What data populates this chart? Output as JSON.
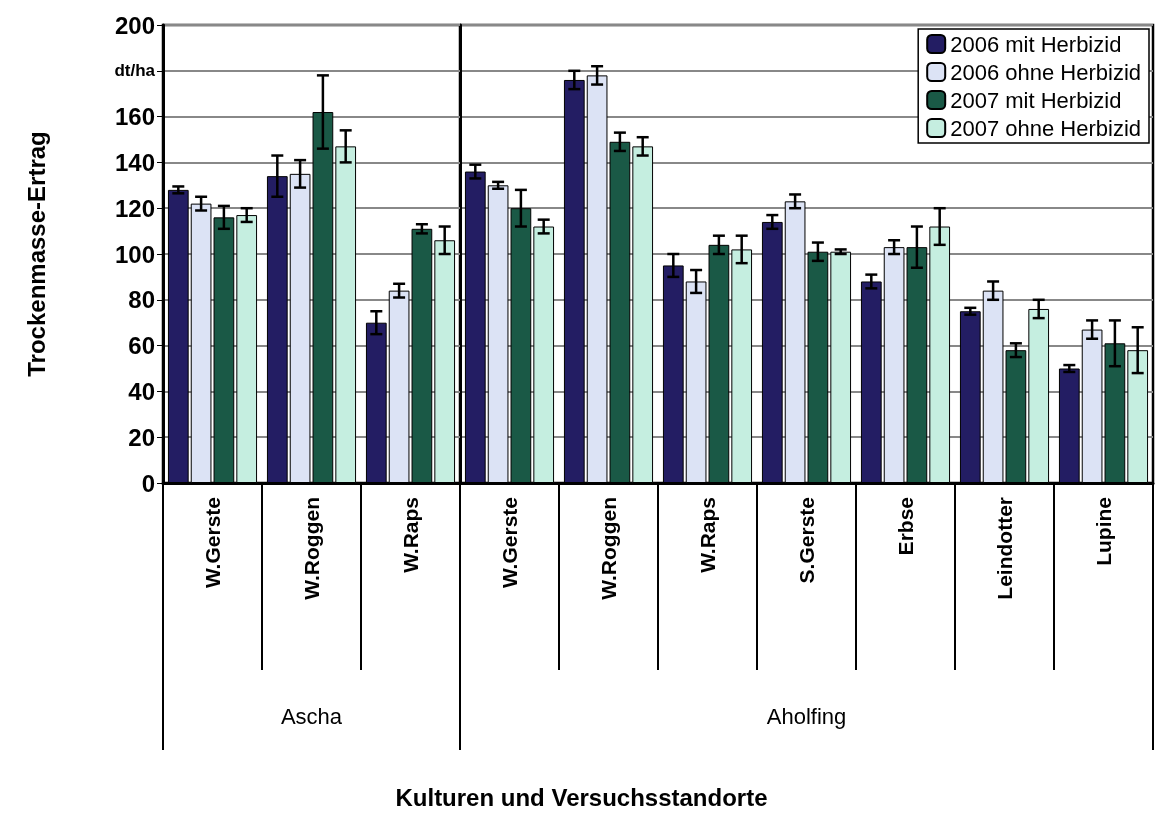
{
  "chart_data": [
    {
      "type": "bar",
      "ylabel": "Trockenmasse-Ertrag",
      "categories": [
        "W.Gerste",
        "W.Roggen",
        "W.Raps"
      ],
      "annotations": [
        "Ascha"
      ],
      "series": [
        {
          "color": "#231d63",
          "values": [
            128,
            134,
            70
          ],
          "errors": [
            1.5,
            9,
            5
          ]
        },
        {
          "color": "#dce3f5",
          "values": [
            122,
            135,
            84
          ],
          "errors": [
            3,
            6,
            3
          ]
        },
        {
          "color": "#1a5946",
          "values": [
            116,
            162,
            111
          ],
          "errors": [
            5,
            16,
            2
          ]
        },
        {
          "color": "#c5eee0",
          "values": [
            117,
            147,
            106
          ],
          "errors": [
            3,
            7,
            6
          ]
        }
      ],
      "ylim": [
        0,
        200
      ],
      "yticks": [
        0,
        20,
        40,
        60,
        80,
        100,
        120,
        140,
        160,
        {
          "value": 180,
          "label": "dt/ha"
        },
        200
      ],
      "grid": "y"
    },
    {
      "type": "bar",
      "xlabel": "Kulturen und Versuchsstandorte",
      "categories": [
        "W.Gerste",
        "W.Roggen",
        "W.Raps",
        "S.Gerste",
        "Erbse",
        "Leindotter",
        "Lupine"
      ],
      "annotations": [
        "Aholfing"
      ],
      "series": [
        {
          "name": "2006 mit Herbizid",
          "color": "#231d63",
          "values": [
            136,
            176,
            95,
            114,
            88,
            75,
            50
          ],
          "errors": [
            3,
            4,
            5,
            3,
            3,
            1.5,
            1.5
          ]
        },
        {
          "name": "2006 ohne Herbizid",
          "color": "#dce3f5",
          "values": [
            130,
            178,
            88,
            123,
            103,
            84,
            67
          ],
          "errors": [
            1.5,
            4,
            5,
            3,
            3,
            4,
            4
          ]
        },
        {
          "name": "2007 mit Herbizid",
          "color": "#1a5946",
          "values": [
            120,
            149,
            104,
            101,
            103,
            58,
            61
          ],
          "errors": [
            8,
            4,
            4,
            4,
            9,
            3,
            10
          ]
        },
        {
          "name": "2007 ohne Herbizid",
          "color": "#c5eee0",
          "values": [
            112,
            147,
            102,
            101,
            112,
            76,
            58
          ],
          "errors": [
            3,
            4,
            6,
            1,
            8,
            4,
            10
          ]
        }
      ],
      "ylim": [
        0,
        200
      ],
      "yticks": [
        0,
        20,
        40,
        60,
        80,
        100,
        120,
        140,
        160,
        180,
        200
      ],
      "grid": "y",
      "tick_labels": "x",
      "legend": "top right"
    }
  ]
}
